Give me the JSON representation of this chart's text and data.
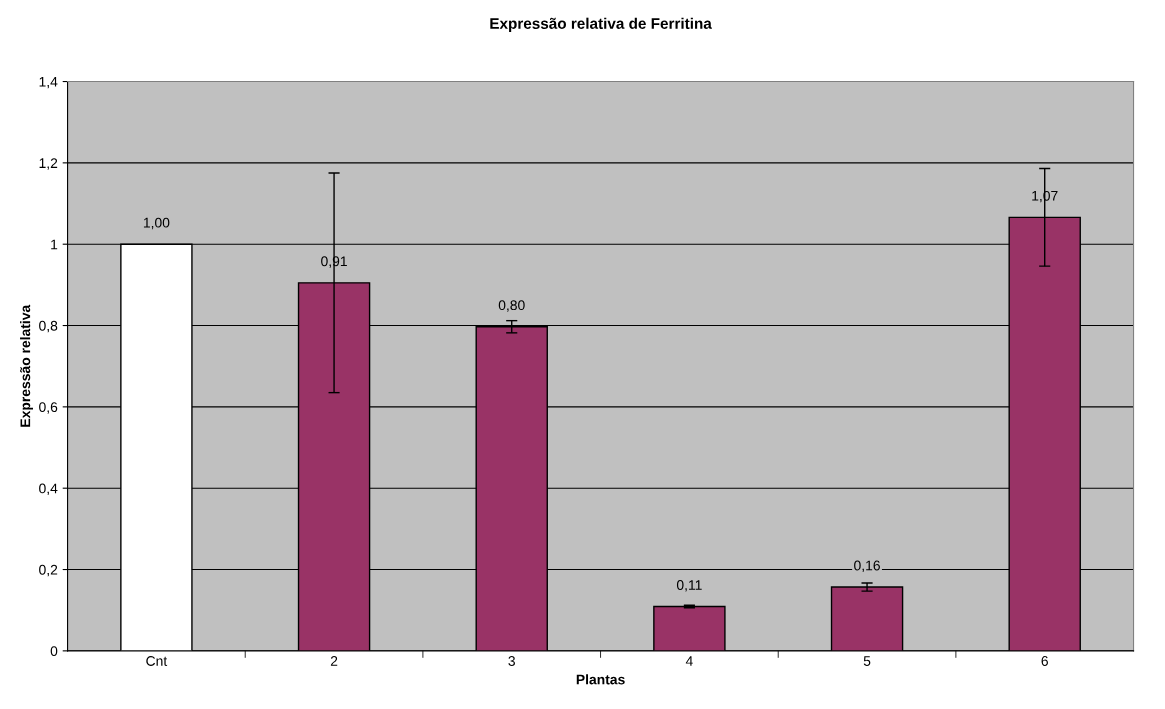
{
  "chart_data": {
    "type": "bar",
    "title": "Expressão relativa de Ferritina",
    "xlabel": "Plantas",
    "ylabel": "Expressão relativa",
    "categories": [
      "Cnt",
      "2",
      "3",
      "4",
      "5",
      "6"
    ],
    "values": [
      1.0,
      0.905,
      0.797,
      0.109,
      0.157,
      1.066
    ],
    "colors": [
      "#ffffff",
      "#993366",
      "#993366",
      "#993366",
      "#993366",
      "#993366"
    ],
    "errors": [
      null,
      0.27,
      0.015,
      0.003,
      0.01,
      0.12
    ],
    "value_labels": [
      "1,00",
      "0,91",
      "0,80",
      "0,11",
      "0,16",
      "1,07"
    ],
    "ylim": [
      0,
      1.4
    ],
    "yticks": [
      0,
      {
        "value": 0.2,
        "label": "0,2"
      },
      {
        "value": 0.4,
        "label": "0,4"
      },
      {
        "value": 0.6,
        "label": "0,6"
      },
      {
        "value": 0.8,
        "label": "0,8"
      },
      1,
      {
        "value": 1.2,
        "label": "1,2"
      },
      {
        "value": 1.4,
        "label": "1,4"
      }
    ],
    "grid": "y"
  }
}
